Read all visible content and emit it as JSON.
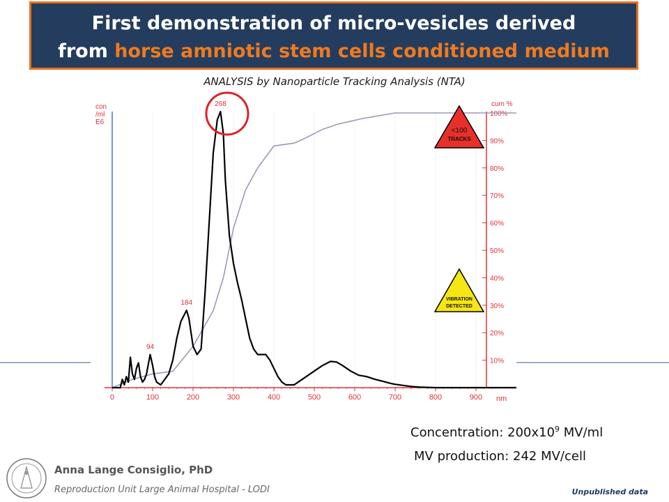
{
  "slide": {
    "title_line1": "First demonstration of micro-vesicles derived",
    "title_line2_prefix": "from ",
    "title_line2_accent": "horse amniotic stem cells conditioned medium",
    "subtitle": "ANALYSIS by Nanoparticle Tracking Analysis (NTA)",
    "concentration_label": "Concentration: 200x10",
    "concentration_exp": "9",
    "concentration_unit": " MV/ml",
    "production": "MV production: 242 MV/cell",
    "author": "Anna Lange Consiglio, PhD",
    "affiliation": "Reproduction Unit  Large Animal Hospital - LODI",
    "footer_note": "Unpublished data",
    "colors": {
      "title_bg": "#243d5e",
      "accent": "#f07a1f",
      "axis_left": "#4a6cf0",
      "axis_right": "#e0303a",
      "curve": "#000000",
      "cumulative": "#9a9ab8"
    }
  },
  "chart_data": {
    "type": "line",
    "xlabel": "nm",
    "ylabel_left": [
      "con",
      "/ml",
      "E6"
    ],
    "ylabel_right": "cum %",
    "xlim": [
      0,
      1000
    ],
    "ylim_right": [
      0,
      100
    ],
    "x_ticks": [
      "0",
      "100",
      "200",
      "300",
      "400",
      "500",
      "600",
      "700",
      "800",
      "900"
    ],
    "y_ticks_right": [
      "10%",
      "20%",
      "30%",
      "40%",
      "50%",
      "60%",
      "70%",
      "80%",
      "90%",
      "100%"
    ],
    "peak_labels": [
      {
        "x": 94,
        "text": "94"
      },
      {
        "x": 184,
        "text": "184"
      },
      {
        "x": 268,
        "text": "268"
      }
    ],
    "highlight": "268",
    "warnings": [
      {
        "line1": "<100",
        "line2": "TRACKS",
        "color": "#e8302a"
      },
      {
        "line1": "VIBRATION",
        "line2": "DETECTED",
        "color": "#f5e614"
      }
    ],
    "series": [
      {
        "name": "",
        "unit": "rel",
        "x": [
          0,
          20,
          25,
          30,
          35,
          40,
          45,
          50,
          55,
          60,
          65,
          70,
          75,
          80,
          85,
          90,
          94,
          100,
          105,
          110,
          120,
          130,
          140,
          150,
          160,
          170,
          184,
          190,
          200,
          210,
          220,
          230,
          240,
          250,
          260,
          268,
          275,
          280,
          290,
          300,
          310,
          320,
          330,
          340,
          350,
          360,
          370,
          380,
          390,
          400,
          410,
          420,
          430,
          440,
          450,
          460,
          480,
          500,
          520,
          540,
          555,
          570,
          590,
          610,
          630,
          650,
          670,
          690,
          700,
          720,
          740,
          760,
          800,
          900,
          1000
        ],
        "y": [
          0,
          0,
          3,
          1,
          4,
          2,
          11,
          5,
          3,
          7,
          9,
          4,
          2,
          3,
          5,
          9,
          12,
          8,
          4,
          2,
          1,
          3,
          5,
          10,
          18,
          24,
          28,
          25,
          15,
          12,
          14,
          35,
          60,
          85,
          97,
          100,
          92,
          75,
          55,
          45,
          38,
          32,
          25,
          18,
          14,
          12,
          12,
          12,
          10,
          7,
          4,
          2,
          1,
          1,
          1,
          2,
          4,
          6,
          8,
          9.5,
          9.3,
          8,
          6,
          4.5,
          4,
          3,
          2.3,
          1.5,
          1.2,
          0.8,
          0.4,
          0.2,
          0,
          0,
          0
        ]
      },
      {
        "name": "",
        "unit": "cum %",
        "x": [
          0,
          50,
          100,
          150,
          200,
          250,
          275,
          300,
          330,
          360,
          400,
          450,
          480,
          520,
          560,
          620,
          700,
          800,
          900,
          1000
        ],
        "y": [
          0,
          3,
          5,
          6,
          15,
          28,
          40,
          58,
          72,
          80,
          88,
          89,
          91,
          94,
          96,
          98,
          100,
          100,
          100,
          100
        ]
      }
    ]
  }
}
